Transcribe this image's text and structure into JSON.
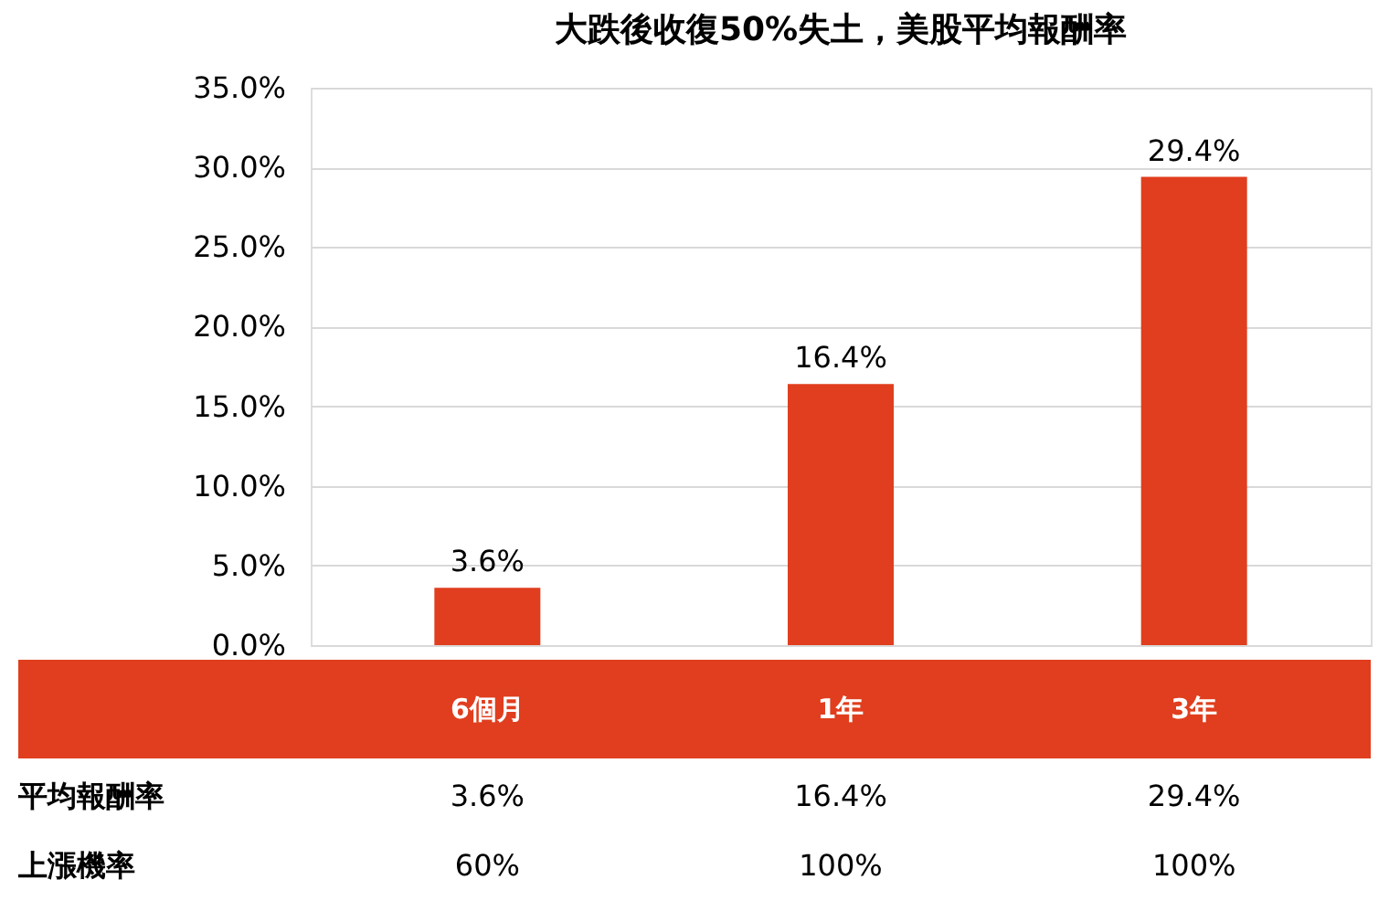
{
  "chart_data": {
    "type": "bar",
    "title": "大跌後收復50%失土，美股平均報酬率",
    "categories": [
      "6個月",
      "1年",
      "3年"
    ],
    "values": [
      3.6,
      16.4,
      29.4
    ],
    "value_labels": [
      "3.6%",
      "16.4%",
      "29.4%"
    ],
    "color": "#e03e1e",
    "ylim": [
      0,
      35
    ],
    "yticks": [
      {
        "value": 0,
        "label": "0.0%"
      },
      {
        "value": 5,
        "label": "5.0%"
      },
      {
        "value": 10,
        "label": "10.0%"
      },
      {
        "value": 15,
        "label": "15.0%"
      },
      {
        "value": 20,
        "label": "20.0%"
      },
      {
        "value": 25,
        "label": "25.0%"
      },
      {
        "value": 30,
        "label": "30.0%"
      },
      {
        "value": 35,
        "label": "35.0%"
      }
    ],
    "grid": "y",
    "annotations": [
      "平均報酬率",
      "3.6%",
      "16.4%",
      "29.4%",
      "上漲機率",
      "60%",
      "100%",
      "100%"
    ]
  }
}
